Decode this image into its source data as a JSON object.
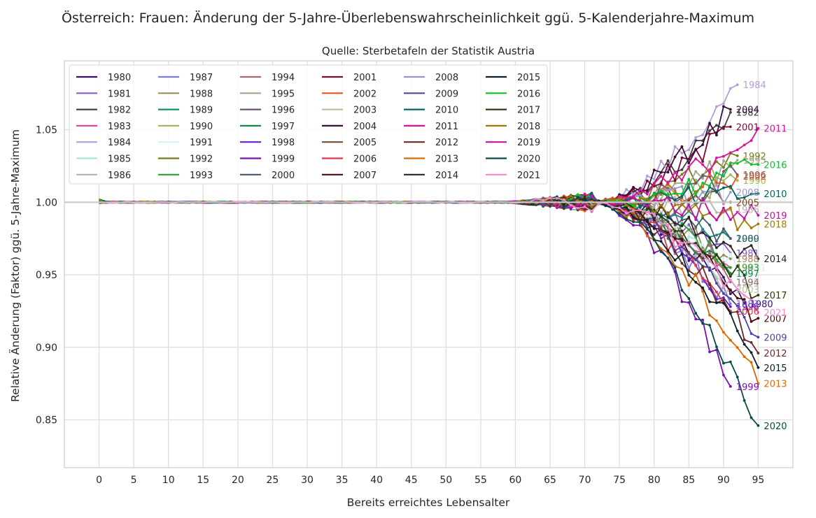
{
  "chart_data": {
    "type": "line",
    "title": "Österreich: Frauen: Änderung der 5-Jahre-Überlebenswahrscheinlichkeit ggü. 5-Kalenderjahre-Maximum",
    "subtitle": "Quelle: Sterbetafeln der Statistik Austria",
    "xlabel": "Bereits erreichtes Lebensalter",
    "ylabel": "Relative Änderung (Faktor) ggü. 5-Jahre-Maximum",
    "xlim": [
      -5,
      100
    ],
    "ylim": [
      0.817,
      1.0975
    ],
    "xticks": [
      0,
      5,
      10,
      15,
      20,
      25,
      30,
      35,
      40,
      45,
      50,
      55,
      60,
      65,
      70,
      75,
      80,
      85,
      90,
      95
    ],
    "yticks": [
      0.85,
      0.9,
      0.95,
      1.0,
      1.05
    ],
    "ytick_labels": [
      "0.85",
      "0.90",
      "0.95",
      "1.00",
      "1.05"
    ],
    "grid": true,
    "reference_line": 1.0,
    "legend_placement": "upper-left, 6 columns",
    "series": [
      {
        "name": "1980",
        "color": "#3b0f70",
        "end_x": 93,
        "end_y": 0.93
      },
      {
        "name": "1981",
        "color": "#8c5ac8",
        "end_x": 91,
        "end_y": 0.965
      },
      {
        "name": "1982",
        "color": "#404040",
        "end_x": 91,
        "end_y": 1.062
      },
      {
        "name": "1983",
        "color": "#e04a9a",
        "end_x": 91,
        "end_y": 0.955
      },
      {
        "name": "1984",
        "color": "#b39ddb",
        "end_x": 92,
        "end_y": 1.081
      },
      {
        "name": "1985",
        "color": "#a8e6da",
        "end_x": 91,
        "end_y": 0.945
      },
      {
        "name": "1986",
        "color": "#bdb0b0",
        "end_x": 91,
        "end_y": 0.995
      },
      {
        "name": "1987",
        "color": "#7b78e8",
        "end_x": 91,
        "end_y": 0.93
      },
      {
        "name": "1988",
        "color": "#9c8a5a",
        "end_x": 91,
        "end_y": 0.961
      },
      {
        "name": "1989",
        "color": "#138d75",
        "end_x": 91,
        "end_y": 0.975
      },
      {
        "name": "1990",
        "color": "#a3b85a",
        "end_x": 92,
        "end_y": 1.015
      },
      {
        "name": "1991",
        "color": "#d6f0fa",
        "end_x": 92,
        "end_y": 0.955
      },
      {
        "name": "1992",
        "color": "#7a7a1a",
        "end_x": 92,
        "end_y": 1.032
      },
      {
        "name": "1993",
        "color": "#2ca02c",
        "end_x": 91,
        "end_y": 0.955
      },
      {
        "name": "1994",
        "color": "#a06a70",
        "end_x": 91,
        "end_y": 0.945
      },
      {
        "name": "1995",
        "color": "#a3a58a",
        "end_x": 92,
        "end_y": 1.029
      },
      {
        "name": "1996",
        "color": "#6a5478",
        "end_x": 92,
        "end_y": 1.019
      },
      {
        "name": "1997",
        "color": "#138a4a",
        "end_x": 91,
        "end_y": 0.951
      },
      {
        "name": "1998",
        "color": "#6b1fbf",
        "end_x": 91,
        "end_y": 0.928
      },
      {
        "name": "1999",
        "color": "#7a10b0",
        "end_x": 91,
        "end_y": 0.873
      },
      {
        "name": "2000",
        "color": "#445870",
        "end_x": 91,
        "end_y": 0.975
      },
      {
        "name": "2001",
        "color": "#7a0a3a",
        "end_x": 91,
        "end_y": 1.052
      },
      {
        "name": "2002",
        "color": "#e2571c",
        "end_x": 92,
        "end_y": 1.018
      },
      {
        "name": "2003",
        "color": "#b8bda0",
        "end_x": 91,
        "end_y": 0.94
      },
      {
        "name": "2004",
        "color": "#3a0e3a",
        "end_x": 91,
        "end_y": 1.064
      },
      {
        "name": "2005",
        "color": "#7a4a2a",
        "end_x": 91,
        "end_y": 1.0
      },
      {
        "name": "2006",
        "color": "#e0364d",
        "end_x": 91,
        "end_y": 0.925
      },
      {
        "name": "2007",
        "color": "#4a0a0a",
        "end_x": 95,
        "end_y": 0.92
      },
      {
        "name": "2008",
        "color": "#9696c8",
        "end_x": 91,
        "end_y": 1.007
      },
      {
        "name": "2009",
        "color": "#5540a0",
        "end_x": 95,
        "end_y": 0.907
      },
      {
        "name": "2010",
        "color": "#00665a",
        "end_x": 95,
        "end_y": 1.006
      },
      {
        "name": "2011",
        "color": "#e0109a",
        "end_x": 95,
        "end_y": 1.051
      },
      {
        "name": "2012",
        "color": "#6a2a2a",
        "end_x": 95,
        "end_y": 0.896
      },
      {
        "name": "2013",
        "color": "#d86a00",
        "end_x": 95,
        "end_y": 0.875
      },
      {
        "name": "2014",
        "color": "#262626",
        "end_x": 95,
        "end_y": 0.961
      },
      {
        "name": "2015",
        "color": "#0a1f2a",
        "end_x": 95,
        "end_y": 0.886
      },
      {
        "name": "2016",
        "color": "#0fbf2a",
        "end_x": 95,
        "end_y": 1.026
      },
      {
        "name": "2017",
        "color": "#2f3a0a",
        "end_x": 95,
        "end_y": 0.936
      },
      {
        "name": "2018",
        "color": "#a07a00",
        "end_x": 95,
        "end_y": 0.985
      },
      {
        "name": "2019",
        "color": "#c010b0",
        "end_x": 95,
        "end_y": 0.991
      },
      {
        "name": "2020",
        "color": "#0a4a4a",
        "end_x": 95,
        "end_y": 0.846
      },
      {
        "name": "2021",
        "color": "#f08ad0",
        "end_x": 95,
        "end_y": 0.924
      }
    ]
  }
}
